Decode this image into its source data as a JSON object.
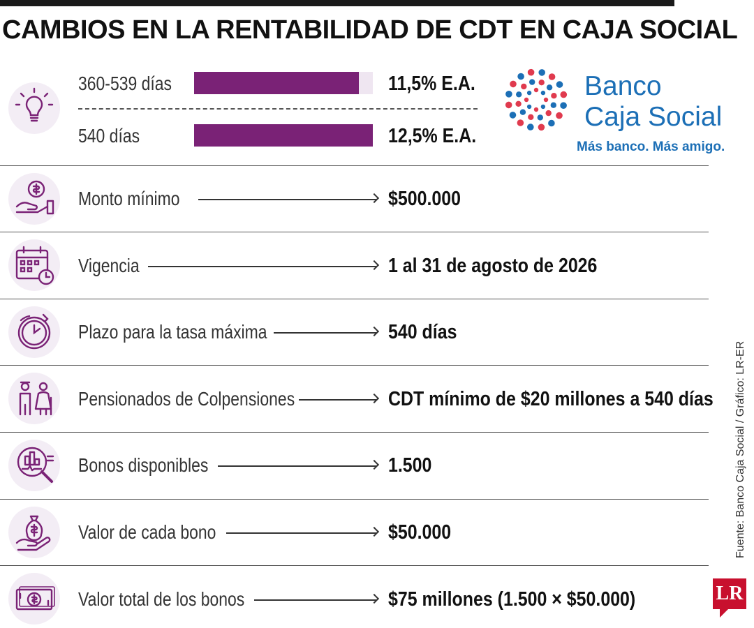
{
  "title": "CAMBIOS EN LA RENTABILIDAD DE CDT EN CAJA SOCIAL",
  "logo": {
    "name_line1": "Banco",
    "name_line2": "Caja Social",
    "tagline": "Más banco. Más amigo."
  },
  "chart_data": {
    "type": "bar",
    "categories": [
      "360-539 días",
      "540 días"
    ],
    "values": [
      11.5,
      12.5
    ],
    "value_labels": [
      "11,5% E.A.",
      "12,5% E.A."
    ],
    "title": "",
    "xlabel": "",
    "ylabel": "",
    "ylim": [
      0,
      12.5
    ],
    "orientation": "horizontal",
    "colors": {
      "bar": "#7a2276",
      "track": "#efe6f1"
    }
  },
  "rows": [
    {
      "label": "Monto mínimo",
      "value": "$500.000",
      "icon": "money-hand-icon"
    },
    {
      "label": "Vigencia",
      "value": "1 al 31 de agosto de 2026",
      "icon": "calendar-clock-icon"
    },
    {
      "label": "Plazo para la tasa máxima",
      "value": "540 días",
      "icon": "stopwatch-icon"
    },
    {
      "label": "Pensionados de Colpensiones",
      "value": "CDT mínimo de $20 millones a 540 días",
      "icon": "elderly-couple-icon"
    },
    {
      "label": "Bonos disponibles",
      "value": "1.500",
      "icon": "magnifier-chart-icon"
    },
    {
      "label": "Valor de cada bono",
      "value": "$50.000",
      "icon": "money-bag-hand-icon"
    },
    {
      "label": "Valor total de los bonos",
      "value": "$75 millones (1.500 × $50.000)",
      "icon": "banknote-icon"
    }
  ],
  "source": "Fuente: Banco Caja Social / Gráfico: LR-ER",
  "badge": "LR",
  "colors": {
    "accent": "#7a2276",
    "icon_bg": "#f3edf5",
    "brand_blue": "#1c6fb6",
    "brand_red": "#e03a4e",
    "badge_red": "#c8102e"
  }
}
